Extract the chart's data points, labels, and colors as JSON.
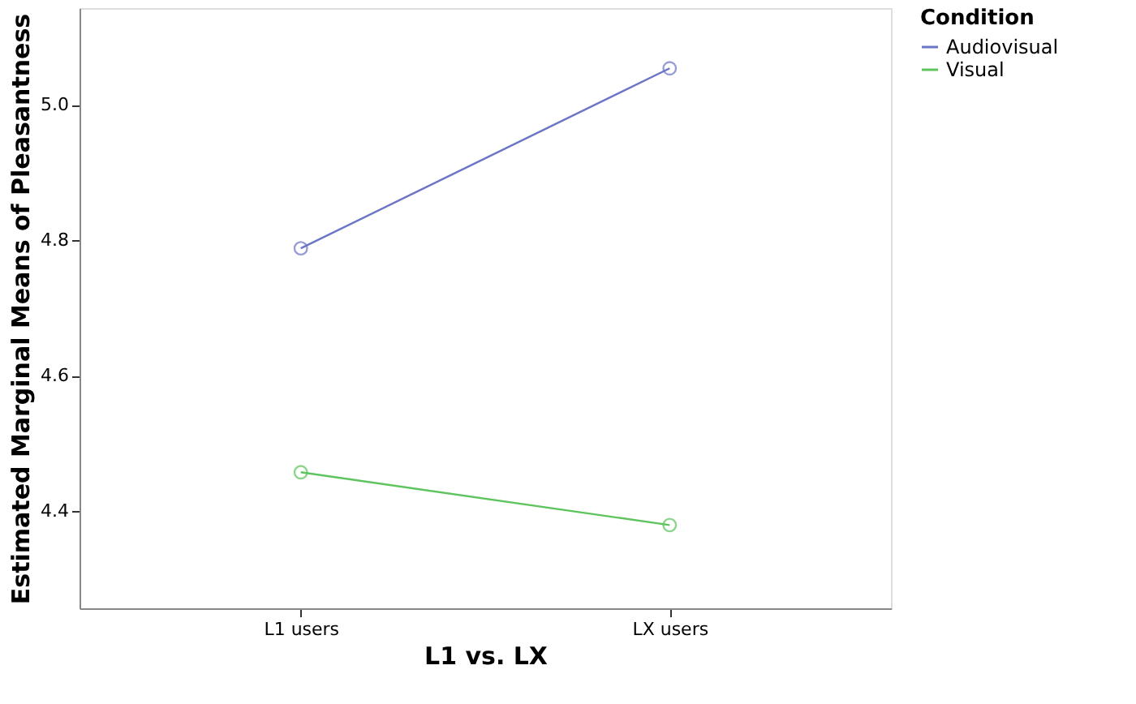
{
  "chart_data": {
    "type": "line",
    "xlabel": "L1 vs. LX",
    "ylabel": "Estimated Marginal Means of Pleasantness",
    "legend_title": "Condition",
    "categories": [
      "L1 users",
      "LX users"
    ],
    "series": [
      {
        "name": "Audiovisual",
        "color": "#6b75c6",
        "values": [
          4.788,
          5.054
        ]
      },
      {
        "name": "Visual",
        "color": "#5ec45e",
        "values": [
          4.457,
          4.379
        ]
      }
    ],
    "ylim": [
      4.256,
      5.143
    ],
    "yticks": [
      4.4,
      4.6,
      4.8,
      {
        "value": 5,
        "label": "5.0"
      }
    ],
    "grid": false,
    "legend": "top right",
    "marker": "circle",
    "line_style": "solid"
  }
}
